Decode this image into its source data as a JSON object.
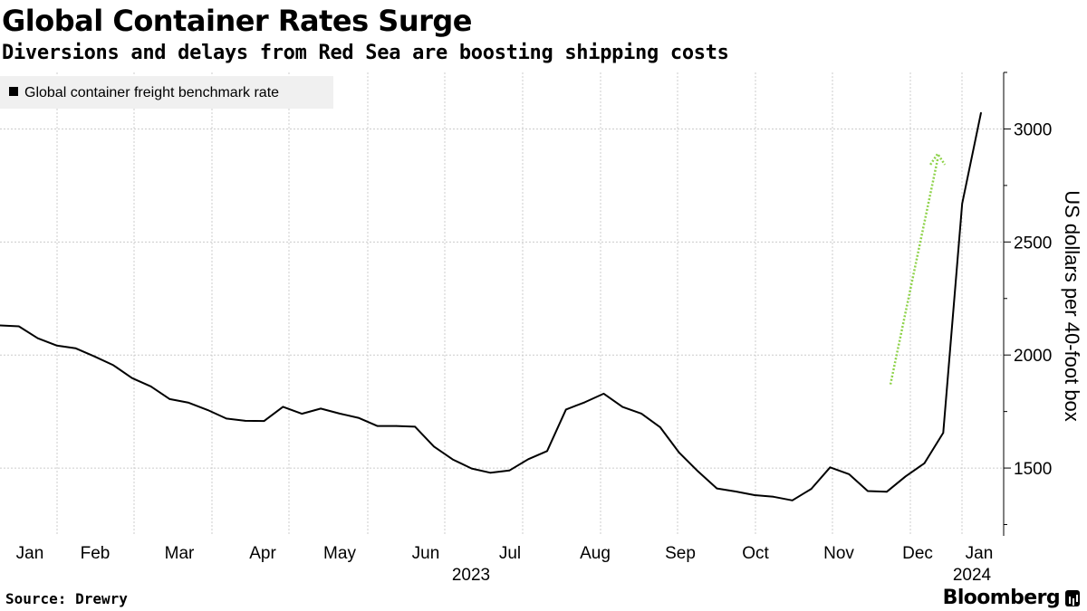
{
  "chart_data": {
    "type": "line",
    "title": "Global Container Rates Surge",
    "subtitle": "Diversions and delays from Red Sea are boosting shipping costs",
    "legend": [
      "Global container freight benchmark rate"
    ],
    "legend_position": "top-left",
    "ylabel": "US dollars per 40-foot box",
    "ylim": [
      1200,
      3250
    ],
    "yticks": [
      1500,
      2000,
      2500,
      3000
    ],
    "x_month_labels": [
      "Jan",
      "Feb",
      "Mar",
      "Apr",
      "May",
      "Jun",
      "Jul",
      "Aug",
      "Sep",
      "Oct",
      "Nov",
      "Dec",
      "Jan"
    ],
    "x_year_labels": [
      "2023",
      "2024"
    ],
    "grid": true,
    "series": [
      {
        "name": "Global container freight benchmark rate",
        "color": "#000000",
        "values": [
          2131,
          2127,
          2074,
          2042,
          2030,
          1994,
          1955,
          1898,
          1861,
          1805,
          1789,
          1757,
          1719,
          1709,
          1708,
          1771,
          1740,
          1763,
          1741,
          1722,
          1686,
          1686,
          1683,
          1595,
          1538,
          1498,
          1479,
          1489,
          1539,
          1575,
          1759,
          1791,
          1829,
          1770,
          1741,
          1680,
          1568,
          1485,
          1410,
          1396,
          1380,
          1373,
          1357,
          1408,
          1503,
          1473,
          1398,
          1395,
          1463,
          1521,
          1656,
          2670,
          3072
        ]
      }
    ],
    "annotation": {
      "type": "arrow",
      "color": "#8ed24a",
      "description": "dotted upward arrow",
      "from": [
        47.2,
        1870
      ],
      "to": [
        49.7,
        2890
      ]
    }
  },
  "footer": {
    "source": "Source: Drewry",
    "brand": "Bloomberg"
  },
  "colors": {
    "grid": "#cccccc",
    "line": "#000000",
    "legend_bg": "#f0f0f0",
    "arrow": "#8ed24a"
  }
}
